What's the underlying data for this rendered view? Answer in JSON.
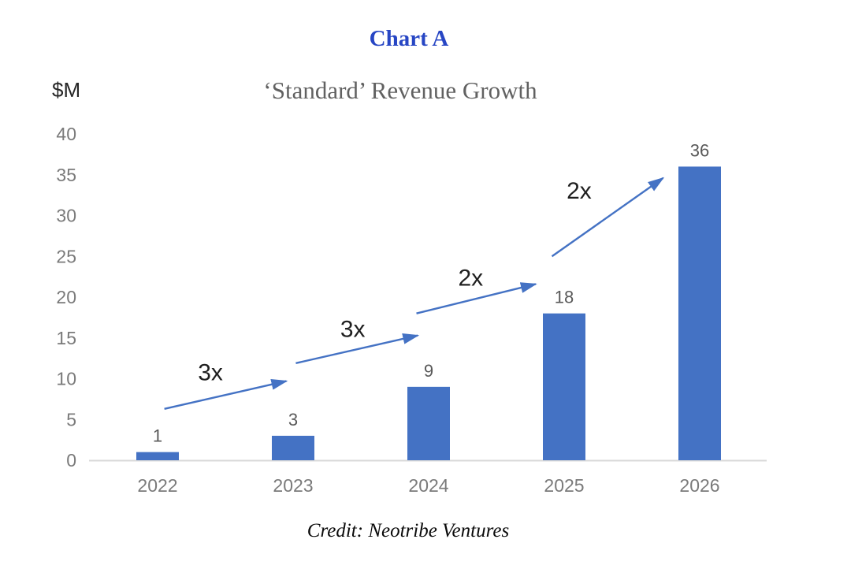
{
  "figure": {
    "title": "Chart A",
    "credit": "Credit: Neotribe Ventures",
    "title_color": "#2746c4"
  },
  "chart_data": {
    "type": "bar",
    "title": "‘Standard’ Revenue Growth",
    "unit_label": "$M",
    "xlabel": "",
    "ylabel": "$M",
    "categories": [
      "2022",
      "2023",
      "2024",
      "2025",
      "2026"
    ],
    "values": [
      1,
      3,
      9,
      18,
      36
    ],
    "bar_labels": [
      "1",
      "3",
      "9",
      "18",
      "36"
    ],
    "y_ticks": [
      0,
      5,
      10,
      15,
      20,
      25,
      30,
      35,
      40
    ],
    "ylim": [
      0,
      40
    ],
    "grid": false,
    "legend": false,
    "annotations": [
      {
        "label": "3x",
        "x1": 0.05,
        "y1": 6.3,
        "x2": 0.95,
        "y2": 9.7,
        "lx": 0.39,
        "ly": 9.8
      },
      {
        "label": "3x",
        "x1": 1.02,
        "y1": 11.9,
        "x2": 1.92,
        "y2": 15.3,
        "lx": 1.44,
        "ly": 15.1
      },
      {
        "label": "2x",
        "x1": 1.91,
        "y1": 18.0,
        "x2": 2.79,
        "y2": 21.6,
        "lx": 2.31,
        "ly": 21.4
      },
      {
        "label": "2x",
        "x1": 2.91,
        "y1": 25.0,
        "x2": 3.73,
        "y2": 34.6,
        "lx": 3.11,
        "ly": 32.1
      }
    ],
    "colors": {
      "bar": "#4472c4",
      "arrow": "#4472c4",
      "axis_line": "#d9d9d9",
      "tick_label": "#7a7a7a",
      "x_label": "#7a7a7a",
      "value_label": "#595959",
      "annotation_label": "#1f1f1f"
    }
  }
}
